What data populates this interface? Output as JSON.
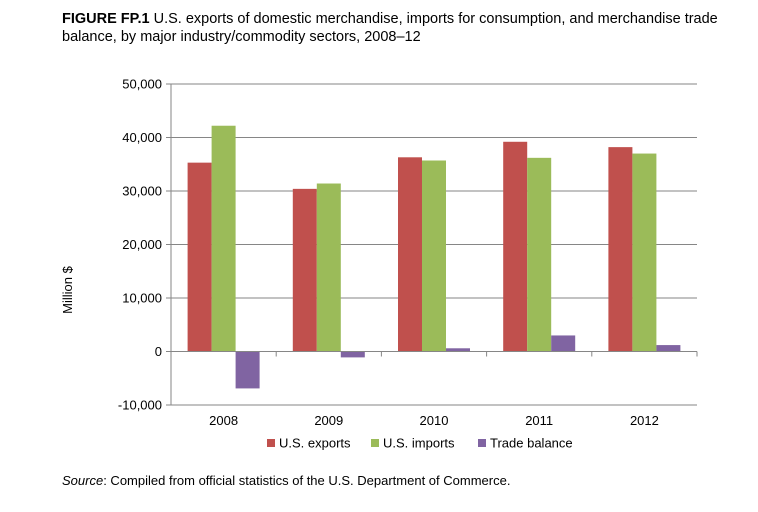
{
  "figure": {
    "label": "FIGURE FP.1",
    "caption": "U.S. exports of domestic merchandise, imports for consumption, and merchandise trade balance, by major industry/commodity sectors, 2008–12"
  },
  "source": {
    "label": "Source",
    "text": ": Compiled from official statistics of the U.S. Department of Commerce."
  },
  "chart_data": {
    "type": "bar",
    "categories": [
      "2008",
      "2009",
      "2010",
      "2011",
      "2012"
    ],
    "series": [
      {
        "name": "U.S. exports",
        "color": "#c0504d",
        "values": [
          35300,
          30400,
          36300,
          39200,
          38200
        ]
      },
      {
        "name": "U.S. imports",
        "color": "#9bbb59",
        "values": [
          42200,
          31400,
          35700,
          36200,
          37000
        ]
      },
      {
        "name": "Trade balance",
        "color": "#8064a2",
        "values": [
          -6900,
          -1100,
          600,
          3000,
          1200
        ]
      }
    ],
    "ylabel": "Million $",
    "xlabel": "",
    "ylim": [
      -10000,
      50000
    ],
    "yticks": [
      -10000,
      0,
      10000,
      20000,
      30000,
      40000,
      50000
    ],
    "ytick_labels": [
      "-10,000",
      "0",
      "10,000",
      "20,000",
      "30,000",
      "40,000",
      "50,000"
    ],
    "grid": true,
    "legend_position": "bottom"
  }
}
